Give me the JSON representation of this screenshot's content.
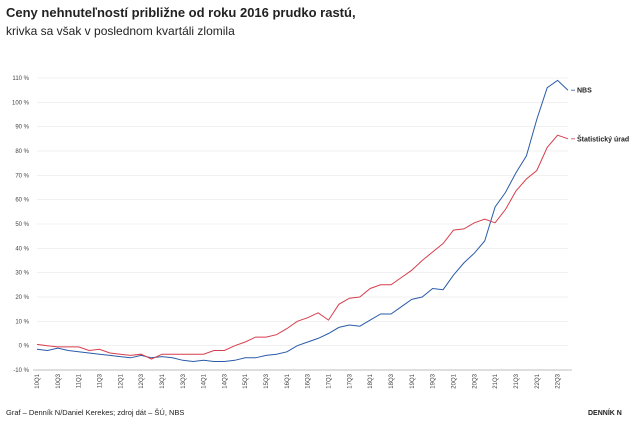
{
  "chart_data": {
    "type": "line",
    "title": "Ceny nehnuteľností približne od roku 2016 prudko rastú,",
    "subtitle": "krivka sa však v poslednom kvartáli zlomila",
    "source": "Graf – Denník N/Daniel Kerekes; zdroj dát – ŠÚ, NBS",
    "logo": "DENNÍK N",
    "categories": [
      "10Q1",
      null,
      "10Q3",
      null,
      "11Q1",
      null,
      "11Q3",
      null,
      "12Q1",
      null,
      "12Q3",
      null,
      "13Q1",
      null,
      "13Q3",
      null,
      "14Q1",
      null,
      "14Q3",
      null,
      "15Q1",
      null,
      "15Q3",
      null,
      "16Q1",
      null,
      "16Q3",
      null,
      "17Q1",
      null,
      "17Q3",
      null,
      "18Q1",
      null,
      "18Q3",
      null,
      "19Q1",
      null,
      "19Q3",
      null,
      "20Q1",
      null,
      "20Q3",
      null,
      "21Q1",
      null,
      "21Q3",
      null,
      "22Q1",
      null,
      "22Q3",
      null
    ],
    "series": [
      {
        "name": "NBS",
        "color": "#2a5ba8",
        "values": [
          -1.5,
          -2,
          -1,
          -2,
          -2.5,
          -3,
          -3.5,
          -4,
          -4.5,
          -5,
          -4,
          -5,
          -4.5,
          -5,
          -6,
          -6.5,
          -6,
          -6.5,
          -6.5,
          -6,
          -5,
          -5,
          -4,
          -3.5,
          -2.5,
          0,
          1.5,
          3,
          5,
          7.5,
          8.5,
          8,
          10.5,
          13,
          13,
          16,
          19,
          20,
          23.5,
          23,
          29,
          34,
          38,
          43,
          57,
          63,
          71,
          78,
          93,
          106,
          109,
          105
        ]
      },
      {
        "name": "Štatistický úrad",
        "color": "#d63f4d",
        "values": [
          0.5,
          0,
          -0.5,
          -0.5,
          -0.5,
          -2,
          -1.5,
          -3,
          -3.5,
          -4,
          -3.5,
          -5.5,
          -3.5,
          -3.5,
          -3.5,
          -3.5,
          -3.5,
          -2,
          -2,
          0,
          1.5,
          3.5,
          3.5,
          4.5,
          7,
          10,
          11.5,
          13.5,
          10.5,
          17,
          19.5,
          20,
          23.5,
          25,
          25,
          28,
          31,
          35,
          38.5,
          42,
          47.5,
          48,
          50.5,
          52,
          50.5,
          56,
          63.5,
          68.5,
          72,
          81.5,
          86.5,
          85
        ]
      }
    ],
    "ylim": [
      -10,
      110
    ],
    "yticks": [
      {
        "value": -10,
        "label": "-10 %"
      },
      {
        "value": 0,
        "label": "0 %"
      },
      {
        "value": 10,
        "label": "10 %"
      },
      {
        "value": 20,
        "label": "20 %"
      },
      {
        "value": 30,
        "label": "30 %"
      },
      {
        "value": 40,
        "label": "40 %"
      },
      {
        "value": 50,
        "label": "50 %"
      },
      {
        "value": 60,
        "label": "60 %"
      },
      {
        "value": 70,
        "label": "70 %"
      },
      {
        "value": 80,
        "label": "80 %"
      },
      {
        "value": 90,
        "label": "90 %"
      },
      {
        "value": 100,
        "label": "100 %"
      },
      {
        "value": 110,
        "label": "110 %"
      }
    ],
    "grid": true
  }
}
